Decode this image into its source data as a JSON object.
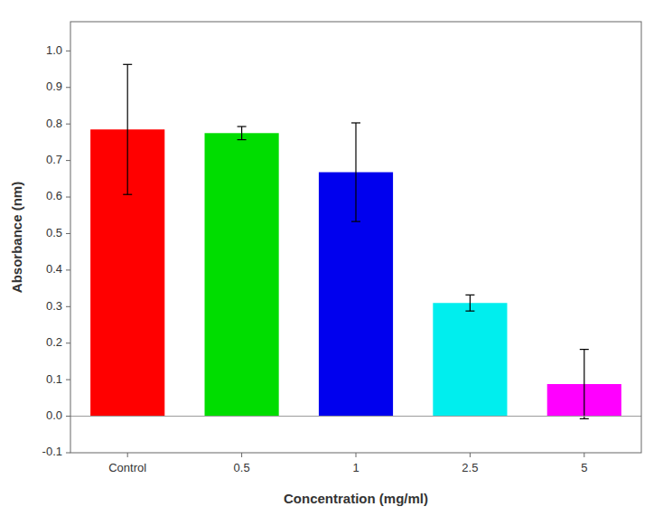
{
  "chart_data": {
    "type": "bar",
    "categories": [
      "Control",
      "0.5",
      "1",
      "2.5",
      "5"
    ],
    "values": [
      0.785,
      0.775,
      0.668,
      0.31,
      0.088
    ],
    "errors": [
      0.178,
      0.018,
      0.135,
      0.022,
      0.095
    ],
    "colors": [
      "#ff0000",
      "#00dd00",
      "#0000ee",
      "#00eeee",
      "#ff00ff"
    ],
    "xlabel": "Concentration (mg/ml)",
    "ylabel": "Absorbance (nm)",
    "ylim": [
      -0.1,
      1.08
    ],
    "yticks": [
      -0.1,
      {
        "value": 0.0,
        "label": "0.0"
      },
      0.1,
      0.2,
      0.3,
      0.4,
      0.5,
      0.6,
      0.7,
      0.8,
      0.9,
      {
        "value": 1.0,
        "label": "1.0"
      }
    ],
    "grid": false
  }
}
